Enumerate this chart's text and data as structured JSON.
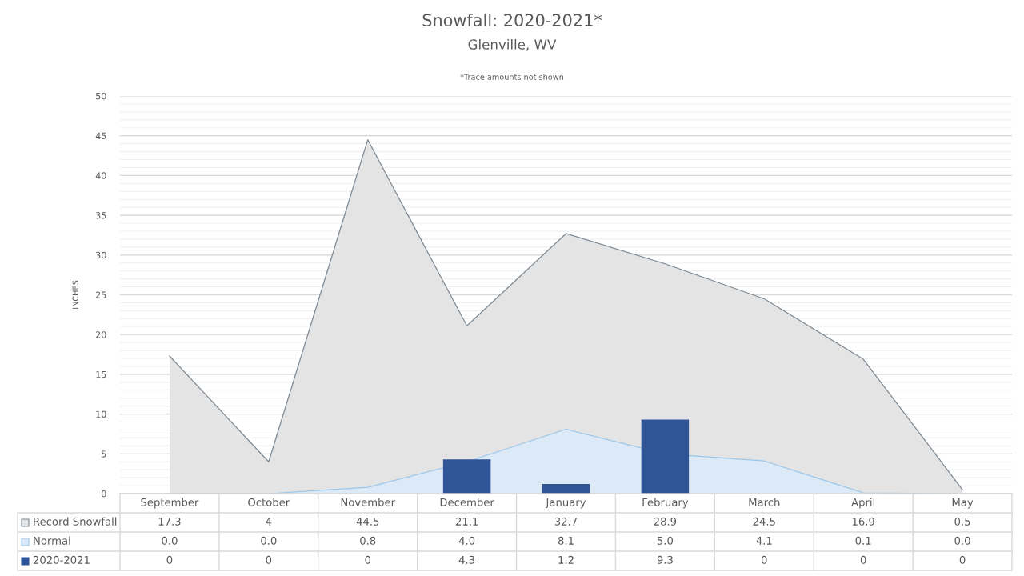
{
  "chart_data": {
    "type": "bar",
    "title": "Snowfall: 2020-2021*",
    "subtitle": "Glenville, WV",
    "ylabel": "INCHES",
    "annotations": [
      "*Trace amounts not shown"
    ],
    "categories": [
      "September",
      "October",
      "November",
      "December",
      "January",
      "February",
      "March",
      "April",
      "May"
    ],
    "series": [
      {
        "name": "Record Snowfall",
        "type": "area",
        "color": "#e4e4e4",
        "values": [
          17.3,
          4,
          44.5,
          21.1,
          32.7,
          28.9,
          24.5,
          16.9,
          0.5
        ],
        "value_labels": [
          "17.3",
          "4",
          "44.5",
          "21.1",
          "32.7",
          "28.9",
          "24.5",
          "16.9",
          "0.5"
        ]
      },
      {
        "name": "Normal",
        "type": "area",
        "color": "#dce9f6",
        "values": [
          0.0,
          0.0,
          0.8,
          4.0,
          8.1,
          5.0,
          4.1,
          0.1,
          0.0
        ],
        "value_labels": [
          "0.0",
          "0.0",
          "0.8",
          "4.0",
          "8.1",
          "5.0",
          "4.1",
          "0.1",
          "0.0"
        ]
      },
      {
        "name": "2020-2021",
        "color": "#2f5597",
        "values": [
          0,
          0,
          0,
          4.3,
          1.2,
          9.3,
          0,
          0,
          0
        ],
        "value_labels": [
          "0",
          "0",
          "0",
          "4.3",
          "1.2",
          "9.3",
          "0",
          "0",
          "0"
        ]
      }
    ],
    "ylim": [
      0,
      50
    ],
    "yticks": [
      0,
      5,
      10,
      15,
      20,
      25,
      30,
      35,
      40,
      45,
      50
    ],
    "grid": "y",
    "legend": "bottom left"
  }
}
